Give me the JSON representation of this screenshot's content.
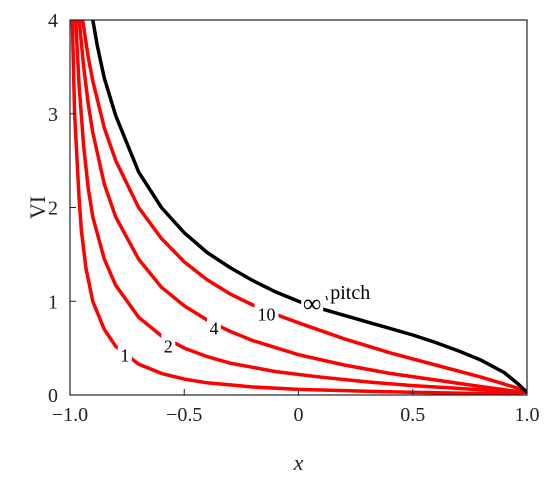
{
  "chart_data": {
    "type": "line",
    "xlabel": "x",
    "ylabel": "VI",
    "xlim": [
      -1.0,
      1.0
    ],
    "ylim": [
      0,
      4
    ],
    "x_ticks": [
      {
        "value": -1.0,
        "label": "−1.0"
      },
      {
        "value": -0.5,
        "label": "−0.5"
      },
      {
        "value": 0,
        "label": "0"
      },
      {
        "value": 0.5,
        "label": "0.5"
      },
      {
        "value": 1.0,
        "label": "1.0"
      }
    ],
    "y_ticks": [
      {
        "value": 0,
        "label": "0"
      },
      {
        "value": 1,
        "label": "1"
      },
      {
        "value": 2,
        "label": "2"
      },
      {
        "value": 3,
        "label": "3"
      },
      {
        "value": 4,
        "label": "4"
      }
    ],
    "grid": false,
    "series": [
      {
        "name": "1",
        "color": "#ff0000",
        "label_at": {
          "x": -0.76,
          "y": 0.43
        },
        "x": [
          -0.99,
          -0.98,
          -0.96,
          -0.95,
          -0.93,
          -0.9,
          -0.85,
          -0.8,
          -0.7,
          -0.6,
          -0.5,
          -0.4,
          -0.2,
          0,
          0.3,
          0.6,
          0.9,
          1.0
        ],
        "y": [
          4.0,
          3.0,
          2.1,
          1.75,
          1.35,
          1.0,
          0.7,
          0.52,
          0.33,
          0.23,
          0.17,
          0.13,
          0.085,
          0.06,
          0.04,
          0.025,
          0.012,
          0.03
        ]
      },
      {
        "name": "2",
        "color": "#ff0000",
        "label_at": {
          "x": -0.57,
          "y": 0.53
        },
        "x": [
          -0.975,
          -0.96,
          -0.94,
          -0.92,
          -0.9,
          -0.85,
          -0.8,
          -0.7,
          -0.6,
          -0.5,
          -0.4,
          -0.3,
          -0.1,
          0.1,
          0.3,
          0.5,
          0.7,
          0.9,
          1.0
        ],
        "y": [
          4.0,
          3.3,
          2.65,
          2.2,
          1.9,
          1.45,
          1.17,
          0.83,
          0.63,
          0.5,
          0.41,
          0.34,
          0.25,
          0.19,
          0.14,
          0.1,
          0.07,
          0.04,
          0.03
        ]
      },
      {
        "name": "4",
        "color": "#ff0000",
        "label_at": {
          "x": -0.37,
          "y": 0.72
        },
        "x": [
          -0.96,
          -0.94,
          -0.92,
          -0.9,
          -0.85,
          -0.8,
          -0.7,
          -0.6,
          -0.5,
          -0.4,
          -0.3,
          -0.2,
          0,
          0.2,
          0.4,
          0.6,
          0.8,
          0.95,
          1.0
        ],
        "y": [
          4.0,
          3.5,
          3.1,
          2.8,
          2.25,
          1.9,
          1.45,
          1.15,
          0.95,
          0.8,
          0.68,
          0.58,
          0.43,
          0.32,
          0.23,
          0.16,
          0.09,
          0.04,
          0.03
        ]
      },
      {
        "name": "10",
        "color": "#ff0000",
        "label_at": {
          "x": -0.14,
          "y": 0.87
        },
        "x": [
          -0.945,
          -0.92,
          -0.9,
          -0.85,
          -0.8,
          -0.7,
          -0.6,
          -0.5,
          -0.4,
          -0.3,
          -0.2,
          -0.1,
          0,
          0.2,
          0.4,
          0.6,
          0.8,
          0.95,
          1.0
        ],
        "y": [
          4.0,
          3.6,
          3.35,
          2.85,
          2.5,
          2.0,
          1.67,
          1.42,
          1.23,
          1.08,
          0.96,
          0.86,
          0.77,
          0.6,
          0.45,
          0.32,
          0.19,
          0.08,
          0.03
        ]
      },
      {
        "name": "∞",
        "color": "#000000",
        "label_at": {
          "x": 0.06,
          "y": 0.98
        },
        "x": [
          -0.9,
          -0.88,
          -0.85,
          -0.8,
          -0.7,
          -0.6,
          -0.5,
          -0.4,
          -0.3,
          -0.2,
          -0.1,
          0,
          0.1,
          0.2,
          0.3,
          0.4,
          0.5,
          0.6,
          0.7,
          0.8,
          0.9,
          0.96,
          1.0
        ],
        "y": [
          4.0,
          3.72,
          3.38,
          2.98,
          2.38,
          2.0,
          1.73,
          1.52,
          1.36,
          1.22,
          1.1,
          1.0,
          0.92,
          0.85,
          0.78,
          0.71,
          0.64,
          0.56,
          0.47,
          0.37,
          0.24,
          0.12,
          0.03
        ]
      }
    ],
    "annotations": [
      {
        "text": "pitch",
        "x": 0.13,
        "y": 1.1,
        "arrow_to": {
          "x": 0.1,
          "y": 0.98
        }
      }
    ]
  }
}
